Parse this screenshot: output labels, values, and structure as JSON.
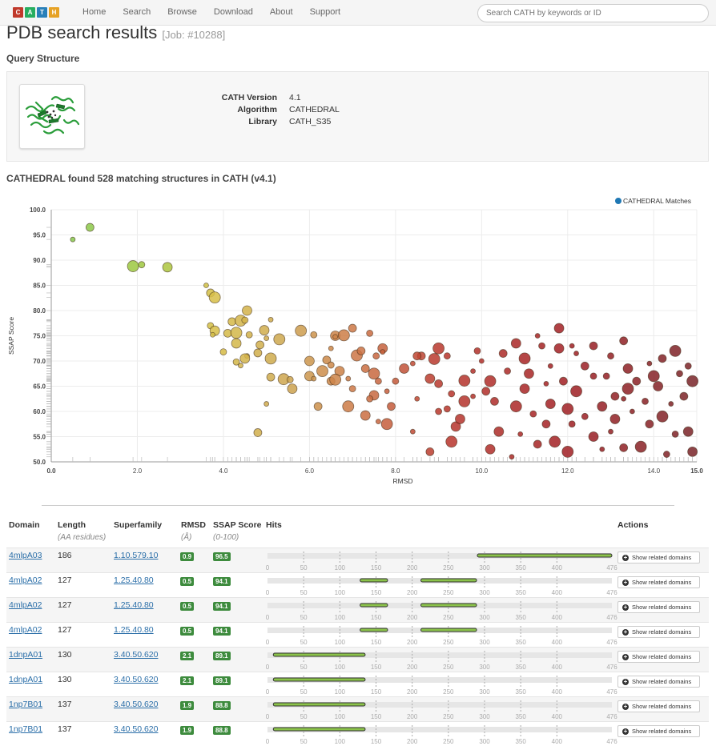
{
  "logo": {
    "letters": [
      "C",
      "A",
      "T",
      "H"
    ],
    "colors": [
      "#c0392b",
      "#27ae60",
      "#2980b9",
      "#e6a225"
    ]
  },
  "nav": [
    "Home",
    "Search",
    "Browse",
    "Download",
    "About",
    "Support"
  ],
  "search": {
    "placeholder": "Search CATH by keywords or ID"
  },
  "page": {
    "title": "PDB search results",
    "job": "[Job: #10288]"
  },
  "query": {
    "heading": "Query Structure",
    "fields": [
      {
        "label": "CATH Version",
        "value": "4.1"
      },
      {
        "label": "Algorithm",
        "value": "CATHEDRAL"
      },
      {
        "label": "Library",
        "value": "CATH_S35"
      }
    ]
  },
  "results_heading": "CATHEDRAL found 528 matching structures in CATH (v4.1)",
  "chart_data": {
    "type": "scatter",
    "title": "",
    "xlabel": "RMSD",
    "ylabel": "SSAP Score",
    "xlim": [
      0,
      15
    ],
    "ylim": [
      50,
      100
    ],
    "xticks": [
      "0.0",
      "2.0",
      "4.0",
      "6.0",
      "8.0",
      "10.0",
      "12.0",
      "14.0",
      "15.0"
    ],
    "yticks": [
      "50.0",
      "55.0",
      "60.0",
      "65.0",
      "70.0",
      "75.0",
      "80.0",
      "85.0",
      "90.0",
      "95.0",
      "100.0"
    ],
    "grid": true,
    "legend": "top-right",
    "series": [
      {
        "name": "CATHEDRAL Matches",
        "color": "#1f78b4",
        "marker": "circle"
      }
    ],
    "points": [
      [
        0.5,
        94.1
      ],
      [
        0.9,
        96.5
      ],
      [
        1.9,
        88.8
      ],
      [
        2.1,
        89.1
      ],
      [
        2.7,
        88.6
      ],
      [
        3.6,
        85.0
      ],
      [
        3.7,
        83.5
      ],
      [
        3.8,
        82.6
      ],
      [
        3.7,
        77.0
      ],
      [
        3.8,
        76.0
      ],
      [
        3.75,
        75.2
      ],
      [
        4.2,
        77.8
      ],
      [
        4.4,
        78.0
      ],
      [
        4.5,
        78.1
      ],
      [
        4.55,
        80.0
      ],
      [
        5.1,
        78.2
      ],
      [
        4.1,
        75.5
      ],
      [
        4.3,
        75.6
      ],
      [
        4.6,
        75.2
      ],
      [
        4.95,
        76.1
      ],
      [
        5.0,
        74.5
      ],
      [
        4.85,
        73.2
      ],
      [
        5.3,
        74.3
      ],
      [
        4.0,
        71.8
      ],
      [
        4.3,
        73.5
      ],
      [
        4.55,
        71.0
      ],
      [
        4.8,
        71.6
      ],
      [
        5.1,
        70.5
      ],
      [
        4.3,
        69.8
      ],
      [
        4.5,
        70.5
      ],
      [
        4.4,
        69.1
      ],
      [
        5.1,
        66.8
      ],
      [
        5.4,
        66.4
      ],
      [
        5.55,
        66.3
      ],
      [
        5.6,
        64.5
      ],
      [
        5.0,
        61.5
      ],
      [
        4.8,
        55.8
      ],
      [
        5.8,
        76.0
      ],
      [
        6.1,
        75.2
      ],
      [
        6.6,
        75.0
      ],
      [
        6.6,
        74.8
      ],
      [
        7.0,
        76.5
      ],
      [
        6.8,
        75.1
      ],
      [
        7.4,
        75.5
      ],
      [
        6.0,
        70.0
      ],
      [
        6.5,
        72.5
      ],
      [
        6.4,
        70.2
      ],
      [
        7.1,
        71.1
      ],
      [
        7.55,
        71.0
      ],
      [
        7.7,
        72.5
      ],
      [
        7.7,
        71.8
      ],
      [
        7.2,
        72.0
      ],
      [
        6.3,
        68.0
      ],
      [
        6.5,
        69.2
      ],
      [
        6.7,
        68.0
      ],
      [
        6.9,
        66.5
      ],
      [
        7.3,
        68.5
      ],
      [
        7.5,
        67.5
      ],
      [
        7.6,
        66.0
      ],
      [
        6.0,
        67.0
      ],
      [
        6.1,
        66.5
      ],
      [
        6.5,
        66.0
      ],
      [
        6.6,
        66.3
      ],
      [
        7.0,
        64.5
      ],
      [
        7.5,
        63.2
      ],
      [
        7.8,
        64.0
      ],
      [
        6.2,
        61.0
      ],
      [
        6.9,
        61.0
      ],
      [
        7.4,
        62.5
      ],
      [
        7.3,
        59.2
      ],
      [
        7.6,
        58.0
      ],
      [
        7.9,
        61.0
      ],
      [
        7.8,
        57.5
      ],
      [
        8.0,
        66.0
      ],
      [
        8.2,
        68.5
      ],
      [
        8.4,
        69.5
      ],
      [
        8.6,
        71.0
      ],
      [
        8.9,
        70.4
      ],
      [
        9.2,
        71.0
      ],
      [
        8.8,
        66.5
      ],
      [
        8.5,
        62.5
      ],
      [
        9.0,
        65.5
      ],
      [
        9.6,
        66.1
      ],
      [
        9.2,
        60.5
      ],
      [
        9.4,
        57.0
      ],
      [
        8.4,
        56.0
      ],
      [
        8.8,
        52.0
      ],
      [
        9.3,
        54.0
      ],
      [
        9.0,
        60.0
      ],
      [
        9.5,
        58.5
      ],
      [
        9.8,
        63.0
      ],
      [
        10.3,
        62.0
      ],
      [
        10.8,
        61.0
      ],
      [
        11.2,
        59.5
      ],
      [
        11.6,
        61.5
      ],
      [
        10.0,
        70.0
      ],
      [
        10.5,
        71.5
      ],
      [
        11.0,
        70.5
      ],
      [
        11.4,
        73.0
      ],
      [
        11.8,
        72.5
      ],
      [
        12.2,
        71.5
      ],
      [
        12.6,
        73.0
      ],
      [
        10.2,
        66.0
      ],
      [
        10.6,
        68.0
      ],
      [
        11.0,
        64.5
      ],
      [
        11.5,
        65.5
      ],
      [
        11.9,
        66.0
      ],
      [
        12.2,
        64.0
      ],
      [
        12.6,
        67.0
      ],
      [
        10.4,
        56.0
      ],
      [
        10.9,
        55.5
      ],
      [
        11.3,
        53.5
      ],
      [
        11.7,
        54.0
      ],
      [
        12.1,
        57.5
      ],
      [
        12.6,
        55.0
      ],
      [
        13.0,
        56.0
      ],
      [
        13.1,
        63.0
      ],
      [
        13.4,
        64.5
      ],
      [
        13.8,
        62.0
      ],
      [
        14.1,
        65.0
      ],
      [
        14.4,
        61.5
      ],
      [
        14.7,
        63.0
      ],
      [
        14.9,
        66.0
      ],
      [
        13.0,
        71.0
      ],
      [
        13.4,
        68.5
      ],
      [
        13.9,
        69.5
      ],
      [
        14.2,
        70.5
      ],
      [
        14.5,
        72.0
      ],
      [
        14.8,
        69.0
      ],
      [
        13.1,
        58.5
      ],
      [
        13.5,
        60.0
      ],
      [
        13.9,
        57.5
      ],
      [
        14.2,
        59.0
      ],
      [
        14.5,
        55.5
      ],
      [
        14.8,
        56.0
      ],
      [
        12.8,
        52.5
      ],
      [
        13.3,
        52.8
      ],
      [
        13.7,
        53.0
      ],
      [
        14.3,
        51.5
      ],
      [
        14.9,
        52.0
      ],
      [
        9.8,
        68.0
      ],
      [
        10.1,
        64.0
      ],
      [
        9.6,
        62.0
      ],
      [
        9.3,
        63.5
      ],
      [
        11.1,
        67.5
      ],
      [
        11.6,
        69.0
      ],
      [
        12.4,
        69.0
      ],
      [
        12.0,
        60.5
      ],
      [
        12.4,
        59.0
      ],
      [
        12.8,
        61.0
      ],
      [
        13.3,
        62.5
      ],
      [
        13.6,
        66.0
      ],
      [
        14.0,
        67.0
      ],
      [
        14.6,
        67.5
      ],
      [
        10.2,
        52.5
      ],
      [
        10.7,
        51.0
      ],
      [
        11.5,
        57.5
      ],
      [
        12.0,
        52.0
      ],
      [
        12.9,
        67.0
      ],
      [
        11.8,
        76.5
      ],
      [
        11.3,
        75.0
      ],
      [
        8.5,
        71.0
      ],
      [
        9.0,
        72.5
      ],
      [
        9.9,
        72.0
      ],
      [
        10.8,
        73.5
      ],
      [
        12.1,
        73.0
      ],
      [
        13.3,
        74.0
      ]
    ]
  },
  "table": {
    "headers": {
      "domain": "Domain",
      "length": "Length",
      "length_sub": "(AA residues)",
      "superfamily": "Superfamily",
      "rmsd": "RMSD",
      "rmsd_sub": "(Å)",
      "ssap": "SSAP Score",
      "ssap_sub": "(0-100)",
      "hits": "Hits",
      "actions": "Actions"
    },
    "hit_ticks": [
      "0",
      "50",
      "100",
      "150",
      "200",
      "250",
      "300",
      "350",
      "400",
      "476"
    ],
    "hit_max": 476,
    "button_label": "Show related domains",
    "rows": [
      {
        "domain": "4mlpA03",
        "length": "186",
        "superfamily": "1.10.579.10",
        "rmsd": "0.9",
        "ssap": "96.5",
        "hits": [
          [
            290,
            476
          ]
        ]
      },
      {
        "domain": "4mlpA02",
        "length": "127",
        "superfamily": "1.25.40.80",
        "rmsd": "0.5",
        "ssap": "94.1",
        "hits": [
          [
            128,
            166
          ],
          [
            212,
            289
          ]
        ]
      },
      {
        "domain": "4mlpA02",
        "length": "127",
        "superfamily": "1.25.40.80",
        "rmsd": "0.5",
        "ssap": "94.1",
        "hits": [
          [
            128,
            166
          ],
          [
            212,
            289
          ]
        ]
      },
      {
        "domain": "4mlpA02",
        "length": "127",
        "superfamily": "1.25.40.80",
        "rmsd": "0.5",
        "ssap": "94.1",
        "hits": [
          [
            128,
            166
          ],
          [
            212,
            289
          ]
        ]
      },
      {
        "domain": "1dnpA01",
        "length": "130",
        "superfamily": "3.40.50.620",
        "rmsd": "2.1",
        "ssap": "89.1",
        "hits": [
          [
            8,
            135
          ]
        ]
      },
      {
        "domain": "1dnpA01",
        "length": "130",
        "superfamily": "3.40.50.620",
        "rmsd": "2.1",
        "ssap": "89.1",
        "hits": [
          [
            8,
            135
          ]
        ]
      },
      {
        "domain": "1np7B01",
        "length": "137",
        "superfamily": "3.40.50.620",
        "rmsd": "1.9",
        "ssap": "88.8",
        "hits": [
          [
            8,
            135
          ]
        ]
      },
      {
        "domain": "1np7B01",
        "length": "137",
        "superfamily": "3.40.50.620",
        "rmsd": "1.9",
        "ssap": "88.8",
        "hits": [
          [
            8,
            135
          ]
        ]
      }
    ]
  }
}
